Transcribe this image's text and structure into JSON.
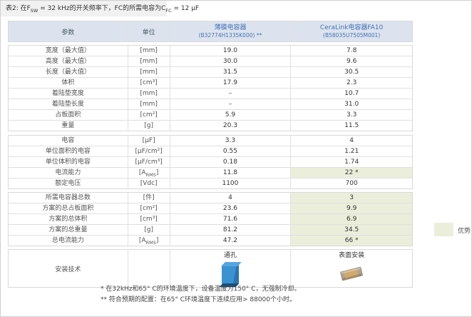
{
  "title": {
    "p1": "表2: 在F",
    "sub1": "SW",
    "p2": " = 32 kHz的开关频率下，FC的所需电容为C",
    "sub2": "FC",
    "p3": " = 12 μF"
  },
  "colors": {
    "header_bg": "#dce3ee",
    "header_text_blue": "#4472b4",
    "highlight_green": "#ebeeda",
    "border": "#d9d9d9",
    "capacitor_blue": "#3a92d1",
    "smd_tan": "#cfa96f"
  },
  "table": {
    "header": {
      "param": "参数",
      "unit": "单位",
      "film_name": "薄膜电容器",
      "film_pn": "(B32774H1335K000) **",
      "cera_name": "CeraLink电容器FA10",
      "cera_pn": "(B58035U7505M001)"
    },
    "sections": [
      {
        "rows": [
          {
            "label": "宽度（最大值）",
            "unit": "[mm]",
            "film": "19.0",
            "cera": "7.8"
          },
          {
            "label": "高度（最大值）",
            "unit": "[mm]",
            "film": "30.0",
            "cera": "9.6"
          },
          {
            "label": "长度（最大值）",
            "unit": "[mm]",
            "film": "31.5",
            "cera": "30.5"
          },
          {
            "label": "体积",
            "unit": "[cm³]",
            "film": "17.9",
            "cera": "2.3"
          },
          {
            "label": "着陆垫宽度",
            "unit": "[mm]",
            "film": "–",
            "cera": "10.7"
          },
          {
            "label": "着陆垫长度",
            "unit": "[mm]",
            "film": "–",
            "cera": "31.0"
          },
          {
            "label": "占板面积",
            "unit": "[cm²]",
            "film": "5.9",
            "cera": "3.3"
          },
          {
            "label": "重量",
            "unit": "[g]",
            "film": "20.3",
            "cera": "11.5"
          }
        ]
      },
      {
        "rows": [
          {
            "label": "电容",
            "unit": "[μF]",
            "film": "3.3",
            "cera": "4"
          },
          {
            "label": "单位面积的电容",
            "unit": "[μF/cm²]",
            "film": "0.55",
            "cera": "1.21"
          },
          {
            "label": "单位体积的电容",
            "unit": "[μF/cm³]",
            "film": "0.18",
            "cera": "1.74"
          },
          {
            "label": "电流能力",
            "unit": "[A",
            "unit_sub": "RMS",
            "unit_end": "]",
            "film": "11.8",
            "cera": "22 *",
            "cera_highlight": true
          },
          {
            "label": "额定电压",
            "unit": "[Vdc]",
            "film": "1100",
            "cera": "700"
          }
        ]
      },
      {
        "rows": [
          {
            "label": "所需电容器总数",
            "unit": "[件]",
            "film": "4",
            "cera": "3",
            "cera_highlight": true
          },
          {
            "label": "方案的总占板面积",
            "unit": "[cm²]",
            "film": "23.6",
            "cera": "9.9",
            "cera_highlight": true
          },
          {
            "label": "方案的总体积",
            "unit": "[cm³]",
            "film": "71.6",
            "cera": "6.9",
            "cera_highlight": true
          },
          {
            "label": "方案的总重量",
            "unit": "[g]",
            "film": "81.2",
            "cera": "34.5",
            "cera_highlight": true
          },
          {
            "label": "总电流能力",
            "unit": "[A",
            "unit_sub": "RMS",
            "unit_end": "]",
            "film": "47.2",
            "cera": "66 *",
            "cera_highlight": true
          }
        ]
      }
    ],
    "mounting": {
      "label": "安装技术",
      "film_type": "通孔",
      "cera_type": "表面安装",
      "film_icon": "through-hole-film-capacitor",
      "cera_icon": "smd-ceralink-chip"
    }
  },
  "legend": {
    "label": "优势"
  },
  "footnotes": {
    "line1": "* 在32kHz和65° C的环境温度下，设备温度为150° C，无强制冷却。",
    "line2": "** 符合预期的配置：在65° C环境温度下连续应用> 88000个小时。"
  }
}
